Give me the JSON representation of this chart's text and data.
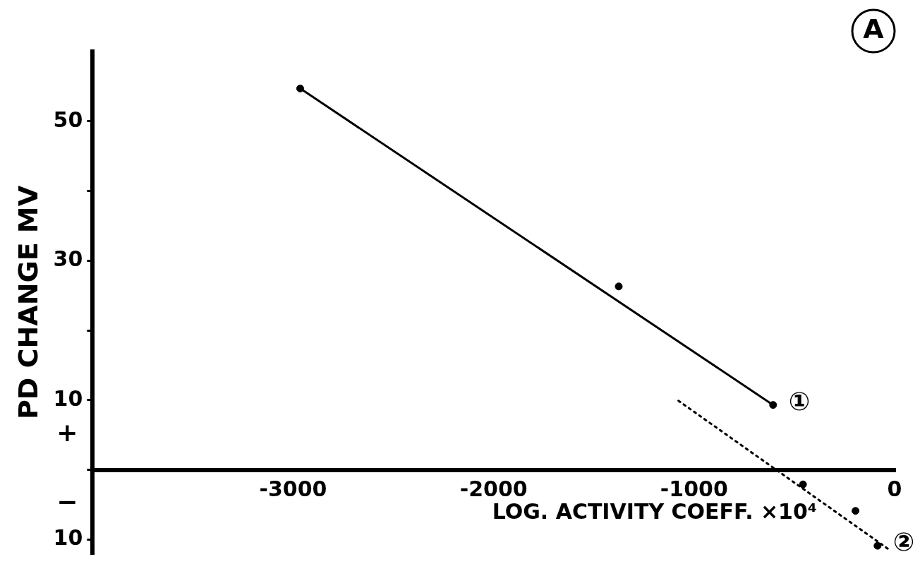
{
  "chart_data": {
    "type": "scatter",
    "xlabel": "LOG. ACTIVITY COEFF. ×10⁴",
    "ylabel": "PD CHANGE MV",
    "xlim": [
      -4000,
      0
    ],
    "xticks": [
      -3000,
      -2000,
      -1000,
      0
    ],
    "ylim": [
      -12,
      60
    ],
    "yticks": [
      {
        "value": -10,
        "label": "10"
      },
      {
        "value": 0,
        "label": null
      },
      10,
      {
        "value": 20,
        "label": null
      },
      30,
      {
        "value": 40,
        "label": null
      },
      50
    ],
    "grid": false,
    "legend": false,
    "marker": "circle",
    "series": [
      {
        "color": "#000000",
        "x": [
          -2965,
          -1376,
          -606
        ],
        "values": [
          54.7,
          26.3,
          9.3
        ]
      },
      {
        "type": "line",
        "color": "#000000",
        "line_style": "solid",
        "marker": "none",
        "x": [
          -2965,
          -606
        ],
        "values": [
          54.7,
          9.3
        ]
      },
      {
        "color": "#000000",
        "x": [
          -457,
          -195,
          -85
        ],
        "values": [
          -2.1,
          -5.9,
          -10.9
        ]
      },
      {
        "type": "line",
        "color": "#000000",
        "line_style": "dotted",
        "marker": "none",
        "x": [
          -1078,
          -30
        ],
        "values": [
          9.9,
          -11.4
        ]
      }
    ],
    "annotations": [
      "A",
      "+",
      "−",
      {
        "text": "①",
        "x": -606,
        "y": 9.3
      },
      {
        "text": "②",
        "x": -85,
        "y": -10.9
      }
    ]
  }
}
